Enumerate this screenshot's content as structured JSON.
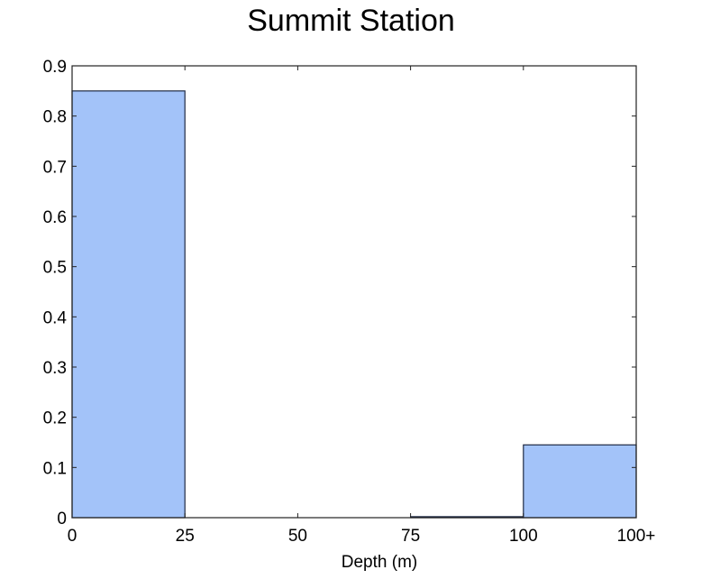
{
  "chart_data": {
    "type": "bar",
    "title": "Summit Station",
    "xlabel": "Depth (m)",
    "ylabel": "",
    "bin_edges": [
      0,
      25,
      50,
      75,
      100,
      125
    ],
    "x_tick_labels": [
      "0",
      "25",
      "50",
      "75",
      "100",
      "100+"
    ],
    "values": [
      0.85,
      0,
      0,
      0.002,
      0.145
    ],
    "ylim": [
      0,
      0.9
    ],
    "y_ticks": [
      0,
      0.1,
      0.2,
      0.3,
      0.4,
      0.5,
      0.6,
      0.7,
      0.8,
      0.9
    ],
    "y_tick_labels": [
      "0",
      "0.1",
      "0.2",
      "0.3",
      "0.4",
      "0.5",
      "0.6",
      "0.7",
      "0.8",
      "0.9"
    ],
    "grid": false,
    "bar_color": "#a3c3f9",
    "bar_edge_color": "#1f2a44"
  }
}
